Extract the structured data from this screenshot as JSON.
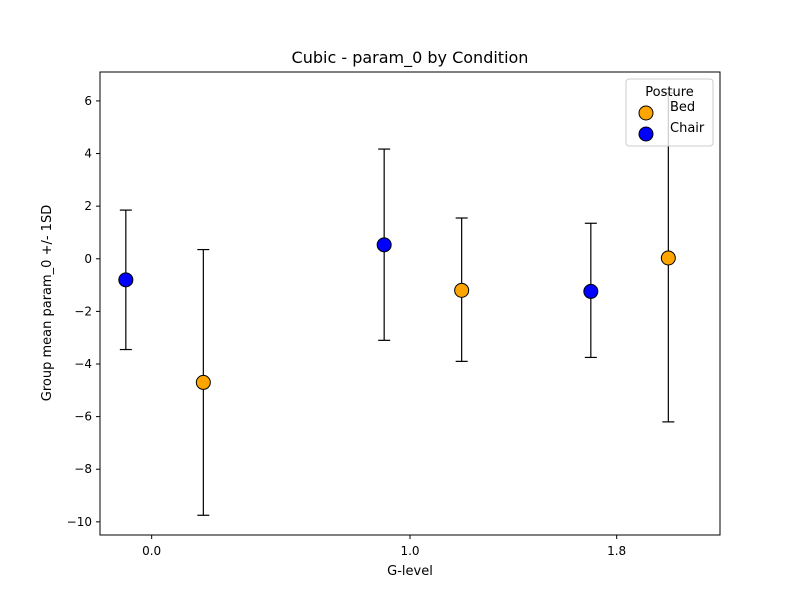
{
  "chart_data": {
    "type": "scatter",
    "title": "Cubic - param_0 by Condition",
    "xlabel": "G-level",
    "ylabel": "Group mean param_0 +/- 1SD",
    "categories": [
      "0.0",
      "1.0",
      "1.8"
    ],
    "ylim": [
      -10.5,
      7.1
    ],
    "yticks": [
      -10,
      -8,
      -6,
      -4,
      -2,
      0,
      2,
      4,
      6
    ],
    "ytick_labels": [
      "−10",
      "−8",
      "−6",
      "−4",
      "−2",
      "0",
      "2",
      "4",
      "6"
    ],
    "legend": {
      "title": "Posture",
      "placement": "top-right"
    },
    "series": [
      {
        "name": "Bed",
        "color": "#ffa500",
        "offset": 0.2,
        "points": [
          {
            "category": "0.0",
            "mean": -4.7,
            "low": -9.75,
            "high": 0.35
          },
          {
            "category": "1.0",
            "mean": -1.2,
            "low": -3.9,
            "high": 1.55
          },
          {
            "category": "1.8",
            "mean": 0.03,
            "low": -6.2,
            "high": 6.3
          }
        ]
      },
      {
        "name": "Chair",
        "color": "#0000ff",
        "offset": -0.1,
        "points": [
          {
            "category": "0.0",
            "mean": -0.8,
            "low": -3.45,
            "high": 1.85
          },
          {
            "category": "1.0",
            "mean": 0.53,
            "low": -3.1,
            "high": 4.17
          },
          {
            "category": "1.8",
            "mean": -1.24,
            "low": -3.75,
            "high": 1.35
          }
        ]
      }
    ]
  }
}
